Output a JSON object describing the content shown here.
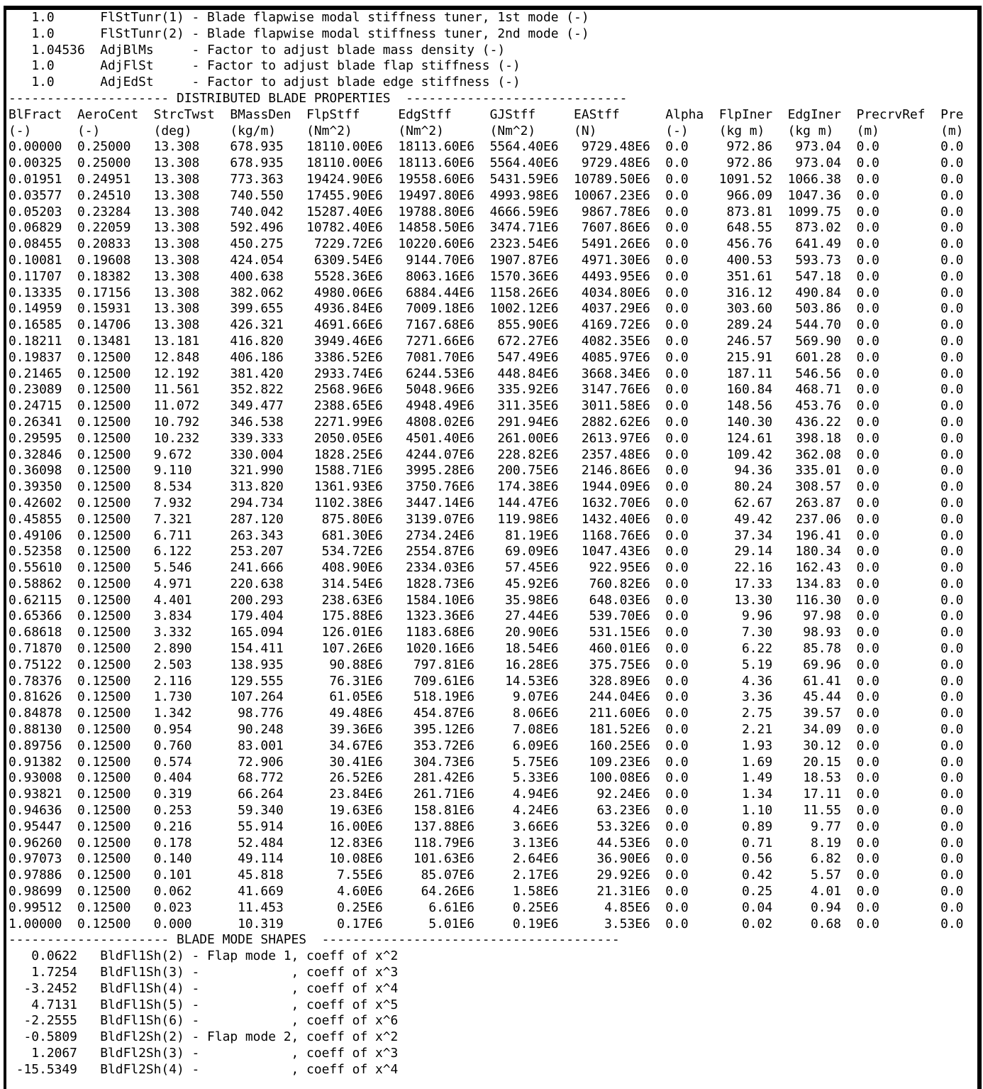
{
  "params": [
    {
      "value": "1.0",
      "name": "FlStTunr(1)",
      "desc": "- Blade flapwise modal stiffness tuner, 1st mode (-)"
    },
    {
      "value": "1.0",
      "name": "FlStTunr(2)",
      "desc": "- Blade flapwise modal stiffness tuner, 2nd mode (-)"
    },
    {
      "value": "1.04536",
      "name": "AdjBlMs",
      "desc": "- Factor to adjust blade mass density (-)"
    },
    {
      "value": "1.0",
      "name": "AdjFlSt",
      "desc": "- Factor to adjust blade flap stiffness (-)"
    },
    {
      "value": "1.0",
      "name": "AdjEdSt",
      "desc": "- Factor to adjust blade edge stiffness (-)"
    }
  ],
  "section1": {
    "dashes_left": "---------------------",
    "title": "DISTRIBUTED BLADE PROPERTIES",
    "dashes_right": "-----------------------------"
  },
  "table": {
    "headers": [
      "BlFract",
      "AeroCent",
      "StrcTwst",
      "BMassDen",
      "FlpStff",
      "EdgStff",
      "GJStff",
      "EAStff",
      "Alpha",
      "FlpIner",
      "EdgIner",
      "PrecrvRef",
      "Pre"
    ],
    "units": [
      "(-)",
      "(-)",
      "(deg)",
      "(kg/m)",
      "(Nm^2)",
      "(Nm^2)",
      "(Nm^2)",
      "(N)",
      "(-)",
      "(kg m)",
      "(kg m)",
      "(m)",
      "(m)"
    ],
    "rows": [
      [
        "0.00000",
        "0.25000",
        "13.308",
        "678.935",
        "18110.00E6",
        "18113.60E6",
        "5564.40E6",
        "9729.48E6",
        "0.0",
        "972.86",
        "973.04",
        "0.0",
        "0.0"
      ],
      [
        "0.00325",
        "0.25000",
        "13.308",
        "678.935",
        "18110.00E6",
        "18113.60E6",
        "5564.40E6",
        "9729.48E6",
        "0.0",
        "972.86",
        "973.04",
        "0.0",
        "0.0"
      ],
      [
        "0.01951",
        "0.24951",
        "13.308",
        "773.363",
        "19424.90E6",
        "19558.60E6",
        "5431.59E6",
        "10789.50E6",
        "0.0",
        "1091.52",
        "1066.38",
        "0.0",
        "0.0"
      ],
      [
        "0.03577",
        "0.24510",
        "13.308",
        "740.550",
        "17455.90E6",
        "19497.80E6",
        "4993.98E6",
        "10067.23E6",
        "0.0",
        "966.09",
        "1047.36",
        "0.0",
        "0.0"
      ],
      [
        "0.05203",
        "0.23284",
        "13.308",
        "740.042",
        "15287.40E6",
        "19788.80E6",
        "4666.59E6",
        "9867.78E6",
        "0.0",
        "873.81",
        "1099.75",
        "0.0",
        "0.0"
      ],
      [
        "0.06829",
        "0.22059",
        "13.308",
        "592.496",
        "10782.40E6",
        "14858.50E6",
        "3474.71E6",
        "7607.86E6",
        "0.0",
        "648.55",
        "873.02",
        "0.0",
        "0.0"
      ],
      [
        "0.08455",
        "0.20833",
        "13.308",
        "450.275",
        "7229.72E6",
        "10220.60E6",
        "2323.54E6",
        "5491.26E6",
        "0.0",
        "456.76",
        "641.49",
        "0.0",
        "0.0"
      ],
      [
        "0.10081",
        "0.19608",
        "13.308",
        "424.054",
        "6309.54E6",
        "9144.70E6",
        "1907.87E6",
        "4971.30E6",
        "0.0",
        "400.53",
        "593.73",
        "0.0",
        "0.0"
      ],
      [
        "0.11707",
        "0.18382",
        "13.308",
        "400.638",
        "5528.36E6",
        "8063.16E6",
        "1570.36E6",
        "4493.95E6",
        "0.0",
        "351.61",
        "547.18",
        "0.0",
        "0.0"
      ],
      [
        "0.13335",
        "0.17156",
        "13.308",
        "382.062",
        "4980.06E6",
        "6884.44E6",
        "1158.26E6",
        "4034.80E6",
        "0.0",
        "316.12",
        "490.84",
        "0.0",
        "0.0"
      ],
      [
        "0.14959",
        "0.15931",
        "13.308",
        "399.655",
        "4936.84E6",
        "7009.18E6",
        "1002.12E6",
        "4037.29E6",
        "0.0",
        "303.60",
        "503.86",
        "0.0",
        "0.0"
      ],
      [
        "0.16585",
        "0.14706",
        "13.308",
        "426.321",
        "4691.66E6",
        "7167.68E6",
        "855.90E6",
        "4169.72E6",
        "0.0",
        "289.24",
        "544.70",
        "0.0",
        "0.0"
      ],
      [
        "0.18211",
        "0.13481",
        "13.181",
        "416.820",
        "3949.46E6",
        "7271.66E6",
        "672.27E6",
        "4082.35E6",
        "0.0",
        "246.57",
        "569.90",
        "0.0",
        "0.0"
      ],
      [
        "0.19837",
        "0.12500",
        "12.848",
        "406.186",
        "3386.52E6",
        "7081.70E6",
        "547.49E6",
        "4085.97E6",
        "0.0",
        "215.91",
        "601.28",
        "0.0",
        "0.0"
      ],
      [
        "0.21465",
        "0.12500",
        "12.192",
        "381.420",
        "2933.74E6",
        "6244.53E6",
        "448.84E6",
        "3668.34E6",
        "0.0",
        "187.11",
        "546.56",
        "0.0",
        "0.0"
      ],
      [
        "0.23089",
        "0.12500",
        "11.561",
        "352.822",
        "2568.96E6",
        "5048.96E6",
        "335.92E6",
        "3147.76E6",
        "0.0",
        "160.84",
        "468.71",
        "0.0",
        "0.0"
      ],
      [
        "0.24715",
        "0.12500",
        "11.072",
        "349.477",
        "2388.65E6",
        "4948.49E6",
        "311.35E6",
        "3011.58E6",
        "0.0",
        "148.56",
        "453.76",
        "0.0",
        "0.0"
      ],
      [
        "0.26341",
        "0.12500",
        "10.792",
        "346.538",
        "2271.99E6",
        "4808.02E6",
        "291.94E6",
        "2882.62E6",
        "0.0",
        "140.30",
        "436.22",
        "0.0",
        "0.0"
      ],
      [
        "0.29595",
        "0.12500",
        "10.232",
        "339.333",
        "2050.05E6",
        "4501.40E6",
        "261.00E6",
        "2613.97E6",
        "0.0",
        "124.61",
        "398.18",
        "0.0",
        "0.0"
      ],
      [
        "0.32846",
        "0.12500",
        "9.672",
        "330.004",
        "1828.25E6",
        "4244.07E6",
        "228.82E6",
        "2357.48E6",
        "0.0",
        "109.42",
        "362.08",
        "0.0",
        "0.0"
      ],
      [
        "0.36098",
        "0.12500",
        "9.110",
        "321.990",
        "1588.71E6",
        "3995.28E6",
        "200.75E6",
        "2146.86E6",
        "0.0",
        "94.36",
        "335.01",
        "0.0",
        "0.0"
      ],
      [
        "0.39350",
        "0.12500",
        "8.534",
        "313.820",
        "1361.93E6",
        "3750.76E6",
        "174.38E6",
        "1944.09E6",
        "0.0",
        "80.24",
        "308.57",
        "0.0",
        "0.0"
      ],
      [
        "0.42602",
        "0.12500",
        "7.932",
        "294.734",
        "1102.38E6",
        "3447.14E6",
        "144.47E6",
        "1632.70E6",
        "0.0",
        "62.67",
        "263.87",
        "0.0",
        "0.0"
      ],
      [
        "0.45855",
        "0.12500",
        "7.321",
        "287.120",
        "875.80E6",
        "3139.07E6",
        "119.98E6",
        "1432.40E6",
        "0.0",
        "49.42",
        "237.06",
        "0.0",
        "0.0"
      ],
      [
        "0.49106",
        "0.12500",
        "6.711",
        "263.343",
        "681.30E6",
        "2734.24E6",
        "81.19E6",
        "1168.76E6",
        "0.0",
        "37.34",
        "196.41",
        "0.0",
        "0.0"
      ],
      [
        "0.52358",
        "0.12500",
        "6.122",
        "253.207",
        "534.72E6",
        "2554.87E6",
        "69.09E6",
        "1047.43E6",
        "0.0",
        "29.14",
        "180.34",
        "0.0",
        "0.0"
      ],
      [
        "0.55610",
        "0.12500",
        "5.546",
        "241.666",
        "408.90E6",
        "2334.03E6",
        "57.45E6",
        "922.95E6",
        "0.0",
        "22.16",
        "162.43",
        "0.0",
        "0.0"
      ],
      [
        "0.58862",
        "0.12500",
        "4.971",
        "220.638",
        "314.54E6",
        "1828.73E6",
        "45.92E6",
        "760.82E6",
        "0.0",
        "17.33",
        "134.83",
        "0.0",
        "0.0"
      ],
      [
        "0.62115",
        "0.12500",
        "4.401",
        "200.293",
        "238.63E6",
        "1584.10E6",
        "35.98E6",
        "648.03E6",
        "0.0",
        "13.30",
        "116.30",
        "0.0",
        "0.0"
      ],
      [
        "0.65366",
        "0.12500",
        "3.834",
        "179.404",
        "175.88E6",
        "1323.36E6",
        "27.44E6",
        "539.70E6",
        "0.0",
        "9.96",
        "97.98",
        "0.0",
        "0.0"
      ],
      [
        "0.68618",
        "0.12500",
        "3.332",
        "165.094",
        "126.01E6",
        "1183.68E6",
        "20.90E6",
        "531.15E6",
        "0.0",
        "7.30",
        "98.93",
        "0.0",
        "0.0"
      ],
      [
        "0.71870",
        "0.12500",
        "2.890",
        "154.411",
        "107.26E6",
        "1020.16E6",
        "18.54E6",
        "460.01E6",
        "0.0",
        "6.22",
        "85.78",
        "0.0",
        "0.0"
      ],
      [
        "0.75122",
        "0.12500",
        "2.503",
        "138.935",
        "90.88E6",
        "797.81E6",
        "16.28E6",
        "375.75E6",
        "0.0",
        "5.19",
        "69.96",
        "0.0",
        "0.0"
      ],
      [
        "0.78376",
        "0.12500",
        "2.116",
        "129.555",
        "76.31E6",
        "709.61E6",
        "14.53E6",
        "328.89E6",
        "0.0",
        "4.36",
        "61.41",
        "0.0",
        "0.0"
      ],
      [
        "0.81626",
        "0.12500",
        "1.730",
        "107.264",
        "61.05E6",
        "518.19E6",
        "9.07E6",
        "244.04E6",
        "0.0",
        "3.36",
        "45.44",
        "0.0",
        "0.0"
      ],
      [
        "0.84878",
        "0.12500",
        "1.342",
        "98.776",
        "49.48E6",
        "454.87E6",
        "8.06E6",
        "211.60E6",
        "0.0",
        "2.75",
        "39.57",
        "0.0",
        "0.0"
      ],
      [
        "0.88130",
        "0.12500",
        "0.954",
        "90.248",
        "39.36E6",
        "395.12E6",
        "7.08E6",
        "181.52E6",
        "0.0",
        "2.21",
        "34.09",
        "0.0",
        "0.0"
      ],
      [
        "0.89756",
        "0.12500",
        "0.760",
        "83.001",
        "34.67E6",
        "353.72E6",
        "6.09E6",
        "160.25E6",
        "0.0",
        "1.93",
        "30.12",
        "0.0",
        "0.0"
      ],
      [
        "0.91382",
        "0.12500",
        "0.574",
        "72.906",
        "30.41E6",
        "304.73E6",
        "5.75E6",
        "109.23E6",
        "0.0",
        "1.69",
        "20.15",
        "0.0",
        "0.0"
      ],
      [
        "0.93008",
        "0.12500",
        "0.404",
        "68.772",
        "26.52E6",
        "281.42E6",
        "5.33E6",
        "100.08E6",
        "0.0",
        "1.49",
        "18.53",
        "0.0",
        "0.0"
      ],
      [
        "0.93821",
        "0.12500",
        "0.319",
        "66.264",
        "23.84E6",
        "261.71E6",
        "4.94E6",
        "92.24E6",
        "0.0",
        "1.34",
        "17.11",
        "0.0",
        "0.0"
      ],
      [
        "0.94636",
        "0.12500",
        "0.253",
        "59.340",
        "19.63E6",
        "158.81E6",
        "4.24E6",
        "63.23E6",
        "0.0",
        "1.10",
        "11.55",
        "0.0",
        "0.0"
      ],
      [
        "0.95447",
        "0.12500",
        "0.216",
        "55.914",
        "16.00E6",
        "137.88E6",
        "3.66E6",
        "53.32E6",
        "0.0",
        "0.89",
        "9.77",
        "0.0",
        "0.0"
      ],
      [
        "0.96260",
        "0.12500",
        "0.178",
        "52.484",
        "12.83E6",
        "118.79E6",
        "3.13E6",
        "44.53E6",
        "0.0",
        "0.71",
        "8.19",
        "0.0",
        "0.0"
      ],
      [
        "0.97073",
        "0.12500",
        "0.140",
        "49.114",
        "10.08E6",
        "101.63E6",
        "2.64E6",
        "36.90E6",
        "0.0",
        "0.56",
        "6.82",
        "0.0",
        "0.0"
      ],
      [
        "0.97886",
        "0.12500",
        "0.101",
        "45.818",
        "7.55E6",
        "85.07E6",
        "2.17E6",
        "29.92E6",
        "0.0",
        "0.42",
        "5.57",
        "0.0",
        "0.0"
      ],
      [
        "0.98699",
        "0.12500",
        "0.062",
        "41.669",
        "4.60E6",
        "64.26E6",
        "1.58E6",
        "21.31E6",
        "0.0",
        "0.25",
        "4.01",
        "0.0",
        "0.0"
      ],
      [
        "0.99512",
        "0.12500",
        "0.023",
        "11.453",
        "0.25E6",
        "6.61E6",
        "0.25E6",
        "4.85E6",
        "0.0",
        "0.04",
        "0.94",
        "0.0",
        "0.0"
      ],
      [
        "1.00000",
        "0.12500",
        "0.000",
        "10.319",
        "0.17E6",
        "5.01E6",
        "0.19E6",
        "3.53E6",
        "0.0",
        "0.02",
        "0.68",
        "0.0",
        "0.0"
      ]
    ]
  },
  "section2": {
    "dashes_left": "---------------------",
    "title": "BLADE MODE SHAPES",
    "dashes_right": "---------------------------------------"
  },
  "mode_shapes": [
    {
      "value": "0.0622",
      "name": "BldFl1Sh(2)",
      "dash": "-",
      "mode": "Flap mode 1",
      "coeff": ", coeff of x^2"
    },
    {
      "value": "1.7254",
      "name": "BldFl1Sh(3)",
      "dash": "-",
      "mode": "",
      "coeff": ", coeff of x^3"
    },
    {
      "value": "-3.2452",
      "name": "BldFl1Sh(4)",
      "dash": "-",
      "mode": "",
      "coeff": ", coeff of x^4"
    },
    {
      "value": "4.7131",
      "name": "BldFl1Sh(5)",
      "dash": "-",
      "mode": "",
      "coeff": ", coeff of x^5"
    },
    {
      "value": "-2.2555",
      "name": "BldFl1Sh(6)",
      "dash": "-",
      "mode": "",
      "coeff": ", coeff of x^6"
    },
    {
      "value": "-0.5809",
      "name": "BldFl2Sh(2)",
      "dash": "-",
      "mode": "Flap mode 2",
      "coeff": ", coeff of x^2"
    },
    {
      "value": "1.2067",
      "name": "BldFl2Sh(3)",
      "dash": "-",
      "mode": "",
      "coeff": ", coeff of x^3"
    },
    {
      "value": "-15.5349",
      "name": "BldFl2Sh(4)",
      "dash": "-",
      "mode": "",
      "coeff": ", coeff of x^4"
    }
  ]
}
